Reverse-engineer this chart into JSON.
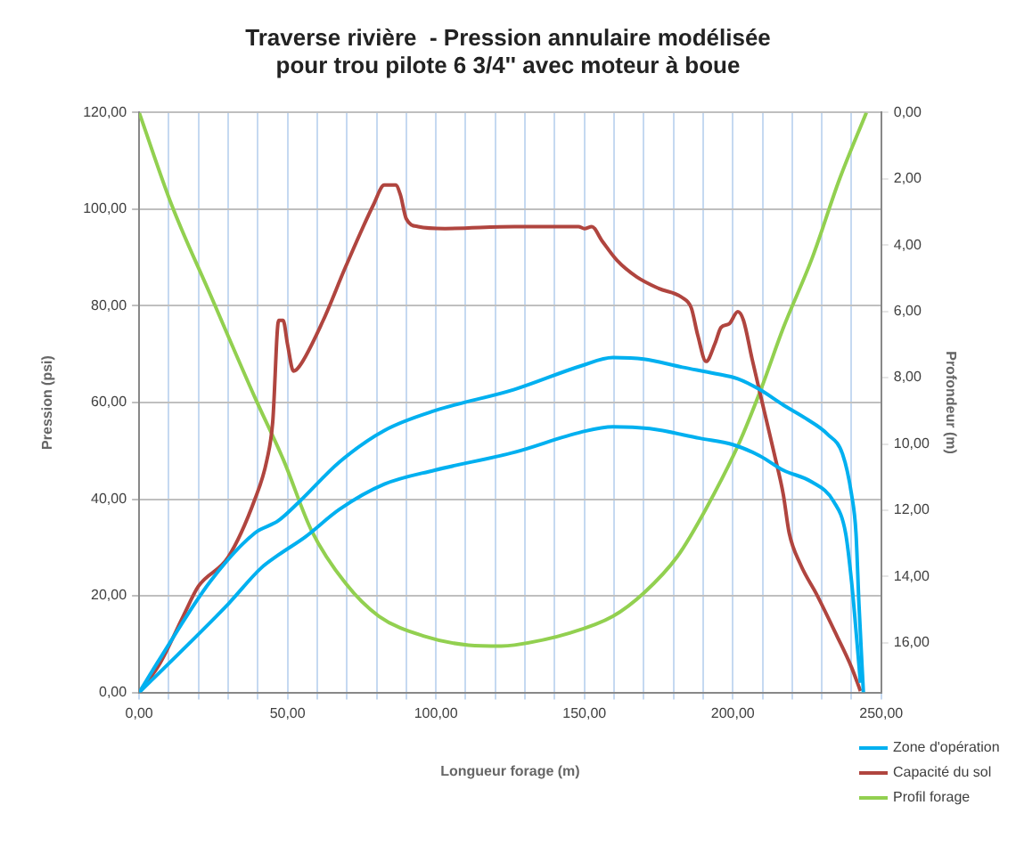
{
  "chart_data": {
    "type": "line",
    "title": "Traverse rivière  - Pression annulaire modélisée\npour trou pilote 6 3/4'' avec moteur à boue",
    "xlabel": "Longueur forage (m)",
    "ylabel": "Pression (psi)",
    "y2label": "Profondeur (m)",
    "xlim": [
      0,
      250
    ],
    "xticks": [
      {
        "value": 0,
        "label": "0,00"
      },
      {
        "value": 10,
        "label": null
      },
      {
        "value": 20,
        "label": null
      },
      {
        "value": 30,
        "label": null
      },
      {
        "value": 40,
        "label": null
      },
      {
        "value": 50,
        "label": "50,00"
      },
      {
        "value": 60,
        "label": null
      },
      {
        "value": 70,
        "label": null
      },
      {
        "value": 80,
        "label": null
      },
      {
        "value": 90,
        "label": null
      },
      {
        "value": 100,
        "label": "100,00"
      },
      {
        "value": 110,
        "label": null
      },
      {
        "value": 120,
        "label": null
      },
      {
        "value": 130,
        "label": null
      },
      {
        "value": 140,
        "label": null
      },
      {
        "value": 150,
        "label": "150,00"
      },
      {
        "value": 160,
        "label": null
      },
      {
        "value": 170,
        "label": null
      },
      {
        "value": 180,
        "label": null
      },
      {
        "value": 190,
        "label": null
      },
      {
        "value": 200,
        "label": "200,00"
      },
      {
        "value": 210,
        "label": null
      },
      {
        "value": 220,
        "label": null
      },
      {
        "value": 230,
        "label": null
      },
      {
        "value": 240,
        "label": null
      },
      {
        "value": 250,
        "label": "250,00"
      }
    ],
    "ylim": [
      0,
      120
    ],
    "yticks": [
      {
        "value": 0,
        "label": "0,00"
      },
      {
        "value": 20,
        "label": "20,00"
      },
      {
        "value": 40,
        "label": "40,00"
      },
      {
        "value": 60,
        "label": "60,00"
      },
      {
        "value": 80,
        "label": "80,00"
      },
      {
        "value": 100,
        "label": "100,00"
      },
      {
        "value": 120,
        "label": "120,00"
      }
    ],
    "y2lim": [
      17.5,
      0
    ],
    "y2ticks": [
      {
        "value": 0,
        "label": "0,00"
      },
      {
        "value": 2,
        "label": "2,00"
      },
      {
        "value": 4,
        "label": "4,00"
      },
      {
        "value": 6,
        "label": "6,00"
      },
      {
        "value": 8,
        "label": "8,00"
      },
      {
        "value": 10,
        "label": "10,00"
      },
      {
        "value": 12,
        "label": "12,00"
      },
      {
        "value": 14,
        "label": "14,00"
      },
      {
        "value": 16,
        "label": "16,00"
      }
    ],
    "grid": true,
    "legend": "bottom right",
    "marker": "none",
    "line_style": "solid",
    "series": [
      {
        "name": "Zone d'opération",
        "color": "#00b0f0",
        "x": [
          0,
          7,
          24,
          39,
          46.8,
          54,
          67.5,
          82.6,
          99.6,
          126.4,
          149,
          159.6,
          170,
          183,
          194,
          201.7,
          209,
          217,
          224.6,
          232,
          237,
          240,
          241.5,
          242.5,
          244
        ],
        "values": [
          0,
          7,
          23,
          33,
          35.5,
          39.5,
          47.7,
          54.2,
          58.3,
          62.7,
          67.6,
          69.3,
          69,
          67.3,
          66,
          64.9,
          62.7,
          59.5,
          56.7,
          53.4,
          49.3,
          41,
          33,
          18.3,
          0
        ]
      },
      {
        "color": "#00b0f0",
        "x": [
          0,
          12.8,
          30,
          41,
          46.8,
          56,
          67.5,
          82.6,
          99.6,
          126.4,
          149,
          159.6,
          172,
          188.9,
          200,
          209,
          217,
          226.5,
          234,
          238,
          240,
          241.9,
          243
        ],
        "values": [
          0,
          7.7,
          18.3,
          25.7,
          28.4,
          32.2,
          37.9,
          43.1,
          46,
          49.7,
          53.9,
          55,
          54.6,
          52.6,
          51.3,
          49,
          46,
          43.6,
          39.5,
          33,
          23,
          10,
          2
        ]
      },
      {
        "name": "Capacité du sol",
        "color": "#b0453f",
        "x": [
          0,
          7,
          15,
          20,
          30,
          39,
          43,
          45,
          47,
          48.5,
          50,
          52,
          54,
          62,
          69.5,
          79,
          82.6,
          86.4,
          88,
          90,
          94,
          103,
          126.4,
          148,
          150,
          152.5,
          156,
          161,
          167.6,
          175,
          183,
          186,
          188.2,
          191,
          194,
          196,
          198.8,
          201.7,
          203.6,
          206.5,
          210.3,
          214,
          217,
          219,
          222.8,
          228.5,
          235,
          240,
          243
        ],
        "values": [
          0,
          6,
          16,
          22,
          28,
          40,
          48,
          56,
          77,
          77,
          72,
          66.5,
          67.5,
          77,
          88,
          101,
          105,
          105,
          103,
          98,
          96.4,
          96,
          96.4,
          96.4,
          96,
          96.4,
          93.4,
          89.4,
          86,
          83.6,
          81.7,
          79.6,
          73.9,
          68.5,
          72.2,
          75.5,
          76.3,
          78.8,
          77,
          69,
          59,
          49.3,
          41,
          33,
          26.5,
          20,
          11.8,
          5.2,
          0.3
        ]
      },
      {
        "name": "Profil forage",
        "color": "#92d050",
        "axis": "y2",
        "x": [
          0,
          11,
          24,
          39,
          48.7,
          58,
          69.5,
          80.8,
          96,
          111,
          122,
          126.4,
          145.3,
          159.6,
          170,
          181.3,
          190.7,
          202,
          209.7,
          217,
          226.7,
          236,
          245
        ],
        "values": [
          0,
          2.8,
          5.5,
          8.6,
          10.5,
          12.6,
          14.2,
          15.2,
          15.8,
          16.07,
          16.1,
          16.07,
          15.7,
          15.2,
          14.5,
          13.4,
          12,
          10,
          8.3,
          6.5,
          4.4,
          2,
          0
        ]
      }
    ]
  }
}
